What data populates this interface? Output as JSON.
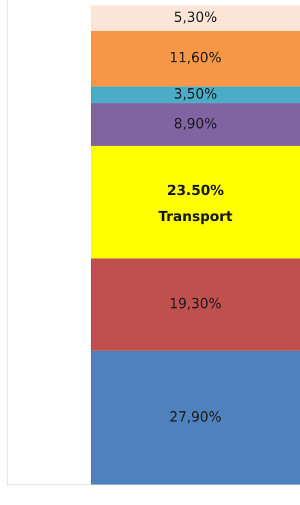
{
  "chart_data": {
    "type": "stacked_bar",
    "segments": [
      {
        "value": 27.9,
        "value_label": "27,90%",
        "color": "#4f81bd"
      },
      {
        "value": 19.3,
        "value_label": "19,30%",
        "color": "#c0504d"
      },
      {
        "value": 23.5,
        "value_label": "23.50%",
        "label": "Transport",
        "color": "#ffff00",
        "bold": true
      },
      {
        "value": 8.9,
        "value_label": "8,90%",
        "color": "#8064a2"
      },
      {
        "value": 3.5,
        "value_label": "3,50%",
        "color": "#4bacc6"
      },
      {
        "value": 11.6,
        "value_label": "11,60%",
        "color": "#f79646"
      },
      {
        "value": 5.3,
        "value_label": "5,30%",
        "color": "#fbe5d6"
      }
    ]
  }
}
